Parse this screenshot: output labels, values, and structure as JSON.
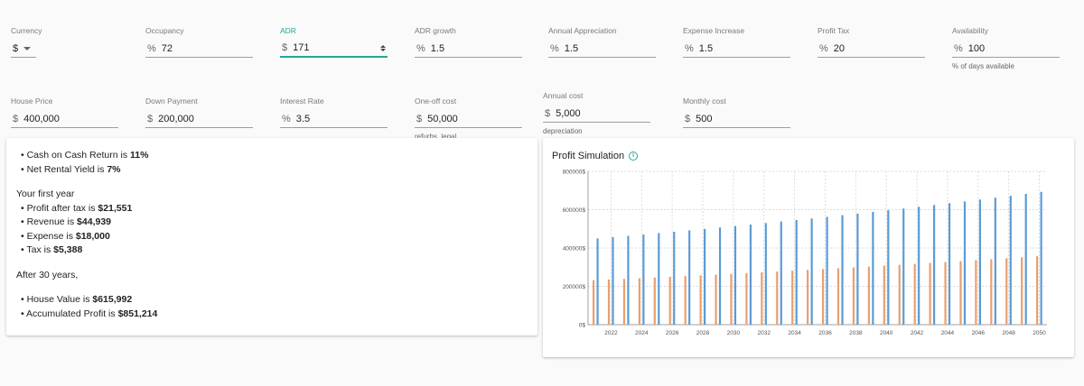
{
  "inputs_row1": [
    {
      "label": "Currency",
      "prefix": "",
      "value": "$",
      "type": "select"
    },
    {
      "label": "Occupancy",
      "prefix": "%",
      "value": "72"
    },
    {
      "label": "ADR",
      "prefix": "$",
      "value": "171",
      "active": true,
      "type": "number"
    },
    {
      "label": "ADR growth",
      "prefix": "%",
      "value": "1.5"
    },
    {
      "label": "Annual Appreciation",
      "prefix": "%",
      "value": "1.5"
    },
    {
      "label": "Expense Increase",
      "prefix": "%",
      "value": "1.5"
    },
    {
      "label": "Profit Tax",
      "prefix": "%",
      "value": "20"
    },
    {
      "label": "Availability",
      "prefix": "%",
      "value": "100",
      "helper": "% of days available"
    }
  ],
  "inputs_row2": [
    {
      "label": "House Price",
      "prefix": "$",
      "value": "400,000"
    },
    {
      "label": "Down Payment",
      "prefix": "$",
      "value": "200,000"
    },
    {
      "label": "Interest Rate",
      "prefix": "%",
      "value": "3.5"
    },
    {
      "label": "One-off cost",
      "prefix": "$",
      "value": "50,000",
      "helper": "refurbs, legal"
    },
    {
      "label": "Annual cost",
      "prefix": "$",
      "value": "5,000",
      "helper": "depreciation"
    },
    {
      "label": "Monthly cost",
      "prefix": "$",
      "value": "500"
    }
  ],
  "summary": {
    "ratios": [
      {
        "text": "Cash on Cash Return is ",
        "value": "11%"
      },
      {
        "text": "Net Rental Yield is ",
        "value": "7%"
      }
    ],
    "first_year_heading": "Your first year",
    "first_year": [
      {
        "text": "Profit after tax is ",
        "value": "$21,551"
      },
      {
        "text": "Revenue is ",
        "value": "$44,939"
      },
      {
        "text": "Expense is ",
        "value": "$18,000"
      },
      {
        "text": "Tax is ",
        "value": "$5,388"
      }
    ],
    "after_heading": "After 30 years,",
    "after": [
      {
        "text": "House Value is ",
        "value": "$615,992"
      },
      {
        "text": "Accumulated Profit is ",
        "value": "$851,214"
      }
    ]
  },
  "chart_title": "Profit Simulation",
  "colors": {
    "accent": "#26a69a",
    "series_blue": "#5b9bd5",
    "series_orange": "#e8a06e"
  },
  "chart_data": {
    "type": "bar",
    "title": "Profit Simulation",
    "x": [
      2021,
      2022,
      2023,
      2024,
      2025,
      2026,
      2027,
      2028,
      2029,
      2030,
      2031,
      2032,
      2033,
      2034,
      2035,
      2036,
      2037,
      2038,
      2039,
      2040,
      2041,
      2042,
      2043,
      2044,
      2045,
      2046,
      2047,
      2048,
      2049,
      2050
    ],
    "x_tick_labels": [
      "2022",
      "2024",
      "2026",
      "2028",
      "2030",
      "2032",
      "2034",
      "2036",
      "2038",
      "2040",
      "2042",
      "2044",
      "2046",
      "2048",
      "2050"
    ],
    "y_tick_labels": [
      "0$",
      "200000$",
      "400000$",
      "600000$",
      "800000$"
    ],
    "ylim": [
      0,
      800000
    ],
    "grid": true,
    "series": [
      {
        "color": "#5b9bd5",
        "values": [
          450000,
          456800,
          463600,
          470600,
          477700,
          484800,
          492100,
          499500,
          507000,
          514600,
          522300,
          530100,
          538100,
          546100,
          554300,
          562600,
          571100,
          579600,
          588300,
          597200,
          606100,
          615100,
          624300,
          633700,
          643200,
          652800,
          662600,
          672600,
          682600,
          692900
        ]
      },
      {
        "color": "#e8a06e",
        "values": [
          232000,
          235500,
          239000,
          242600,
          246200,
          249900,
          253600,
          257400,
          261300,
          265200,
          269200,
          273200,
          277300,
          281500,
          285700,
          290000,
          294300,
          298700,
          303200,
          307800,
          312400,
          317100,
          321800,
          326600,
          331500,
          336500,
          341500,
          346600,
          351800,
          357100
        ]
      }
    ]
  }
}
